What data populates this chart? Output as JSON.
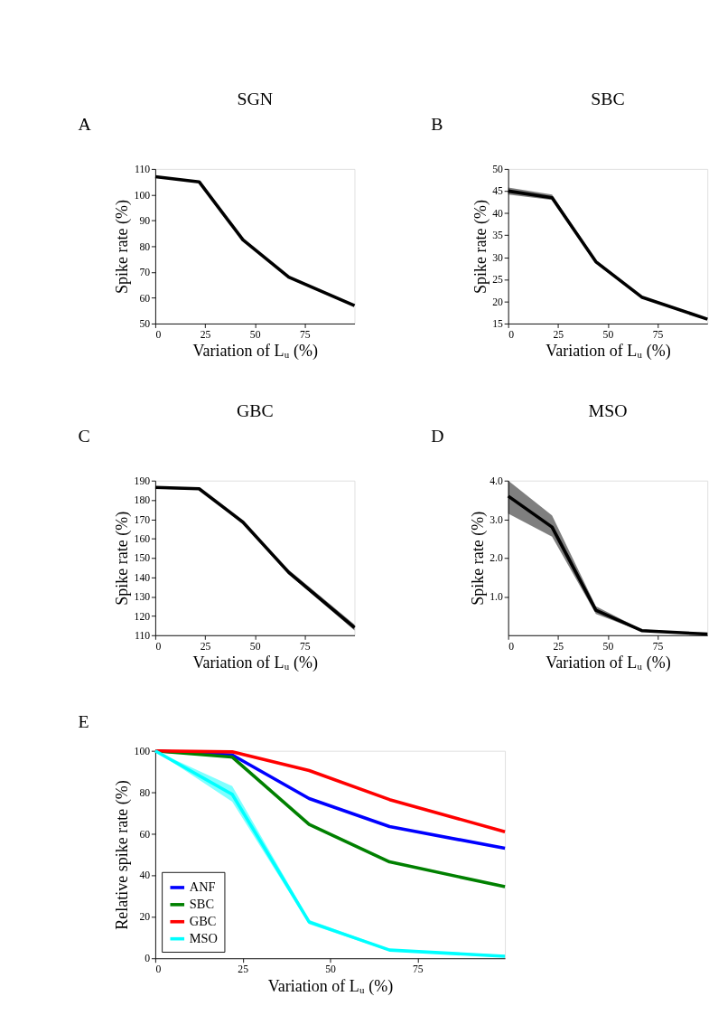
{
  "chart_data": [
    {
      "type": "line",
      "title": "SGN",
      "annotations": [
        "A"
      ],
      "xlabel": "Variation of Lᵤ (%)",
      "ylabel": "Spike rate (%)",
      "x": [
        0,
        22,
        44,
        67,
        100
      ],
      "xlim": [
        0,
        100
      ],
      "xticks": [
        0,
        25,
        50,
        75
      ],
      "ylim": [
        50,
        110
      ],
      "yticks": [
        50,
        60,
        70,
        80,
        90,
        100,
        110
      ],
      "grid": false,
      "legend": false,
      "series": [
        {
          "color": "#000000",
          "values": [
            107,
            105,
            82.5,
            68,
            57
          ]
        }
      ]
    },
    {
      "type": "line",
      "title": "SBC",
      "annotations": [
        "B"
      ],
      "xlabel": "Variation of Lᵤ (%)",
      "ylabel": "Spike rate (%)",
      "x": [
        0,
        22,
        44,
        67,
        100
      ],
      "xlim": [
        0,
        100
      ],
      "xticks": [
        0,
        25,
        50,
        75
      ],
      "ylim": [
        15,
        50
      ],
      "yticks": [
        15,
        20,
        25,
        30,
        35,
        40,
        45,
        50
      ],
      "grid": false,
      "legend": false,
      "series": [
        {
          "color": "#000000",
          "values": [
            45,
            43.5,
            29,
            21,
            16
          ],
          "lower": [
            44.2,
            43,
            28.6,
            20.8,
            15.8
          ],
          "upper": [
            45.8,
            44.2,
            29.4,
            21.2,
            16.2
          ]
        }
      ]
    },
    {
      "type": "line",
      "title": "GBC",
      "annotations": [
        "C"
      ],
      "xlabel": "Variation of Lᵤ (%)",
      "ylabel": "Spike rate (%)",
      "x": [
        0,
        22,
        44,
        67,
        100
      ],
      "xlim": [
        0,
        100
      ],
      "xticks": [
        0,
        25,
        50,
        75
      ],
      "ylim": [
        110,
        190
      ],
      "yticks": [
        110,
        120,
        130,
        140,
        150,
        160,
        170,
        180,
        190
      ],
      "grid": false,
      "legend": false,
      "series": [
        {
          "color": "#000000",
          "values": [
            186.5,
            185.8,
            168.5,
            142.5,
            114
          ],
          "lower": [
            185.8,
            185.3,
            168,
            141.5,
            112.5
          ],
          "upper": [
            187,
            186.3,
            169,
            143.8,
            115.5
          ]
        }
      ]
    },
    {
      "type": "line",
      "title": "MSO",
      "annotations": [
        "D"
      ],
      "xlabel": "Variation of Lᵤ (%)",
      "ylabel": "Spike rate (%)",
      "x": [
        0,
        22,
        44,
        67,
        100
      ],
      "xlim": [
        0,
        100
      ],
      "xticks": [
        0,
        25,
        50,
        75
      ],
      "ylim": [
        0,
        4
      ],
      "yticks": [
        {
          "value": 1,
          "label": "1.0"
        },
        {
          "value": 2,
          "label": "2.0"
        },
        {
          "value": 3,
          "label": "3.0"
        },
        {
          "value": 4,
          "label": "4.0"
        }
      ],
      "grid": false,
      "legend": false,
      "series": [
        {
          "color": "#000000",
          "values": [
            3.6,
            2.8,
            0.65,
            0.12,
            0.03
          ],
          "lower": [
            3.15,
            2.55,
            0.55,
            0.1,
            0.01
          ],
          "upper": [
            4.0,
            3.1,
            0.75,
            0.15,
            0.05
          ]
        }
      ]
    },
    {
      "type": "line",
      "annotations": [
        "E"
      ],
      "xlabel": "Variation of Lᵤ (%)",
      "ylabel": "Relative spike rate (%)",
      "x": [
        0,
        22,
        44,
        67,
        100
      ],
      "xlim": [
        0,
        100
      ],
      "xticks": [
        0,
        25,
        50,
        75
      ],
      "ylim": [
        0,
        100
      ],
      "yticks": [
        0,
        20,
        40,
        60,
        80,
        100
      ],
      "grid": false,
      "legend": "bottom left",
      "series": [
        {
          "name": "ANF",
          "color": "#0000ff",
          "values": [
            100,
            98,
            77,
            63.5,
            53
          ]
        },
        {
          "name": "SBC",
          "color": "#008000",
          "values": [
            100,
            97,
            64.5,
            46.5,
            34.5
          ]
        },
        {
          "name": "GBC",
          "color": "#ff0000",
          "values": [
            100,
            99.5,
            90.5,
            76.5,
            61
          ]
        },
        {
          "name": "MSO",
          "color": "#00ffff",
          "values": [
            100,
            79,
            17.5,
            4,
            1
          ],
          "lower": [
            100,
            75.5,
            16.5,
            3.5,
            0.5
          ],
          "upper": [
            100,
            83,
            18.5,
            4.5,
            1.5
          ]
        }
      ]
    }
  ]
}
